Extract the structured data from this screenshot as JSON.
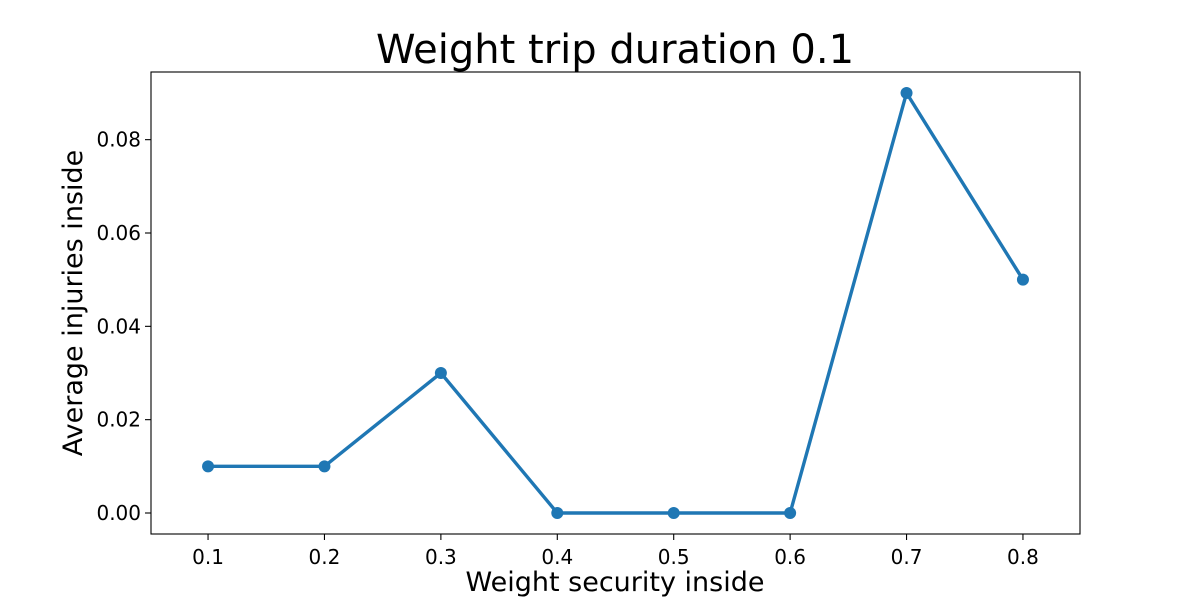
{
  "chart_data": {
    "type": "line",
    "title": "Weight trip duration 0.1",
    "xlabel": "Weight security inside",
    "ylabel": "Average injuries inside",
    "x": [
      0.1,
      0.2,
      0.3,
      0.4,
      0.5,
      0.6,
      0.7,
      0.8
    ],
    "series": [
      {
        "values": [
          0.01,
          0.01,
          0.03,
          0.0,
          0.0,
          0.0,
          0.09,
          0.05
        ],
        "color": "#1f77b4"
      }
    ],
    "xticks": [
      "0.1",
      "0.2",
      "0.3",
      "0.4",
      "0.5",
      "0.6",
      "0.7",
      "0.8"
    ],
    "yticks": [
      "0.00",
      "0.02",
      "0.04",
      "0.06",
      "0.08"
    ],
    "xlim": [
      0.051,
      0.849
    ],
    "ylim": [
      -0.0045,
      0.0945
    ],
    "grid": false,
    "markers": true
  }
}
